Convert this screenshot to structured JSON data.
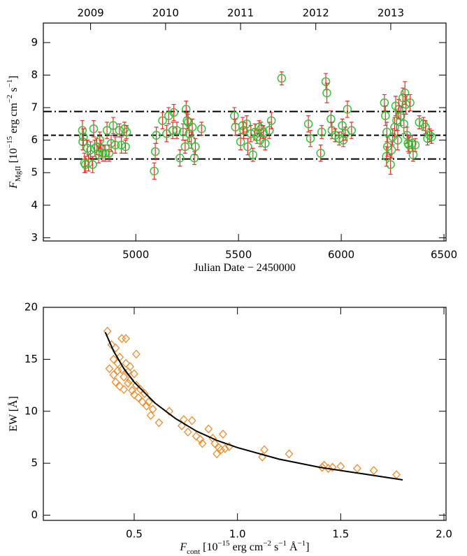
{
  "chart_data": [
    {
      "type": "scatter",
      "xlabel_parts": [
        {
          "text": "Julian Date − 2450000",
          "style": "normal"
        }
      ],
      "ylabel_parts": [
        {
          "text": "F",
          "style": "italic"
        },
        {
          "text": "MgII",
          "style": "sub"
        },
        {
          "text": " [10",
          "style": "normal"
        },
        {
          "text": "−15",
          "style": "sup"
        },
        {
          "text": " erg cm",
          "style": "normal"
        },
        {
          "text": "−2",
          "style": "sup"
        },
        {
          "text": " s",
          "style": "normal"
        },
        {
          "text": "−1",
          "style": "sup"
        },
        {
          "text": "]",
          "style": "normal"
        }
      ],
      "xlim": [
        4550,
        6510
      ],
      "ylim": [
        2.9,
        9.6
      ],
      "xticks": [
        5000,
        5500,
        6000,
        6500
      ],
      "yticks": [
        3,
        4,
        5,
        6,
        7,
        8,
        9
      ],
      "top_xticks": [
        {
          "value": 4780,
          "label": "2009"
        },
        {
          "value": 5145,
          "label": "2010"
        },
        {
          "value": 5510,
          "label": "2011"
        },
        {
          "value": 5876,
          "label": "2012"
        },
        {
          "value": 6241,
          "label": "2013"
        }
      ],
      "hlines": [
        {
          "value": 6.88,
          "style": "dashdot"
        },
        {
          "value": 6.15,
          "style": "dashed"
        },
        {
          "value": 5.42,
          "style": "dashdot"
        }
      ],
      "series": [
        {
          "marker": "circle",
          "color": "#35c435",
          "error_color": "#e8302a",
          "x": [
            4740,
            4742,
            4745,
            4750,
            4755,
            4765,
            4770,
            4780,
            4790,
            4795,
            4800,
            4810,
            4820,
            4825,
            4830,
            4840,
            4850,
            4860,
            4870,
            4880,
            4890,
            4900,
            4920,
            4930,
            4945,
            4950,
            4955,
            5090,
            5095,
            5100,
            5130,
            5150,
            5160,
            5180,
            5185,
            5200,
            5215,
            5230,
            5240,
            5245,
            5250,
            5255,
            5260,
            5270,
            5275,
            5285,
            5290,
            5320,
            5480,
            5485,
            5510,
            5520,
            5525,
            5540,
            5545,
            5560,
            5570,
            5580,
            5590,
            5600,
            5605,
            5610,
            5620,
            5630,
            5650,
            5660,
            5710,
            5840,
            5850,
            5900,
            5905,
            5925,
            5930,
            5950,
            5955,
            5970,
            5990,
            6005,
            6010,
            6020,
            6030,
            6050,
            6210,
            6215,
            6220,
            6222,
            6225,
            6240,
            6245,
            6250,
            6260,
            6265,
            6270,
            6275,
            6280,
            6290,
            6300,
            6305,
            6310,
            6315,
            6320,
            6325,
            6330,
            6335,
            6345,
            6350,
            6360,
            6380,
            6400,
            6410,
            6420,
            6430,
            6440
          ],
          "y": [
            6.3,
            5.95,
            6.1,
            5.3,
            5.25,
            5.75,
            5.3,
            5.7,
            5.25,
            6.35,
            5.75,
            5.8,
            5.55,
            6.0,
            5.75,
            5.6,
            5.6,
            6.3,
            5.6,
            5.9,
            6.45,
            5.85,
            6.3,
            5.85,
            6.35,
            5.8,
            6.25,
            5.05,
            5.65,
            6.15,
            6.6,
            6.2,
            6.75,
            6.3,
            6.85,
            6.3,
            5.45,
            6.25,
            5.8,
            6.95,
            6.6,
            6.55,
            6.2,
            6.0,
            6.4,
            5.45,
            5.8,
            6.35,
            6.75,
            6.4,
            5.95,
            6.45,
            6.3,
            6.5,
            5.8,
            6.2,
            5.55,
            6.25,
            6.1,
            6.4,
            6.0,
            6.35,
            6.25,
            5.9,
            6.3,
            6.6,
            7.9,
            6.5,
            6.05,
            5.6,
            6.25,
            7.8,
            7.45,
            6.65,
            6.3,
            6.15,
            6.05,
            6.45,
            6.0,
            6.2,
            6.95,
            6.3,
            7.15,
            6.75,
            5.5,
            6.25,
            5.8,
            5.25,
            5.7,
            6.1,
            6.4,
            7.05,
            6.6,
            6.0,
            6.95,
            6.75,
            7.3,
            6.5,
            7.45,
            7.1,
            6.15,
            5.9,
            5.85,
            7.15,
            5.9,
            5.55,
            5.85,
            6.55,
            6.5,
            6.4,
            6.05,
            6.15,
            6.1
          ],
          "yerr": [
            0.3,
            0.25,
            0.25,
            0.3,
            0.25,
            0.25,
            0.25,
            0.25,
            0.25,
            0.25,
            0.25,
            0.25,
            0.25,
            0.25,
            0.25,
            0.25,
            0.25,
            0.25,
            0.25,
            0.25,
            0.25,
            0.25,
            0.2,
            0.25,
            0.2,
            0.2,
            0.2,
            0.25,
            0.25,
            0.25,
            0.25,
            0.25,
            0.25,
            0.25,
            0.25,
            0.25,
            0.25,
            0.25,
            0.2,
            0.25,
            0.25,
            0.25,
            0.25,
            0.25,
            0.25,
            0.2,
            0.25,
            0.2,
            0.25,
            0.25,
            0.25,
            0.25,
            0.25,
            0.25,
            0.25,
            0.25,
            0.2,
            0.25,
            0.2,
            0.2,
            0.2,
            0.2,
            0.2,
            0.2,
            0.25,
            0.25,
            0.2,
            0.25,
            0.25,
            0.25,
            0.2,
            0.25,
            0.3,
            0.25,
            0.25,
            0.2,
            0.2,
            0.2,
            0.2,
            0.2,
            0.25,
            0.25,
            0.25,
            0.3,
            0.3,
            0.3,
            0.3,
            0.3,
            0.25,
            0.25,
            0.3,
            0.3,
            0.3,
            0.3,
            0.3,
            0.3,
            0.3,
            0.3,
            0.35,
            0.3,
            0.25,
            0.25,
            0.25,
            0.25,
            0.25,
            0.2,
            0.2,
            0.2,
            0.2,
            0.2,
            0.2,
            0.2,
            0.2
          ]
        }
      ]
    },
    {
      "type": "scatter",
      "xlabel_parts": [
        {
          "text": "F",
          "style": "italic"
        },
        {
          "text": "cont",
          "style": "sub"
        },
        {
          "text": " [10",
          "style": "normal"
        },
        {
          "text": "−15",
          "style": "sup"
        },
        {
          "text": " erg cm",
          "style": "normal"
        },
        {
          "text": "−2",
          "style": "sup"
        },
        {
          "text": " s",
          "style": "normal"
        },
        {
          "text": "−1",
          "style": "sup"
        },
        {
          "text": " Å",
          "style": "normal"
        },
        {
          "text": "−1",
          "style": "sup"
        },
        {
          "text": "]",
          "style": "normal"
        }
      ],
      "ylabel_parts": [
        {
          "text": "EW [Å]",
          "style": "normal"
        }
      ],
      "xlim": [
        0.06,
        2.01
      ],
      "ylim": [
        -0.5,
        20
      ],
      "xticks": [
        0.5,
        {
          "value": 1,
          "label": "1.0"
        },
        1.5,
        {
          "value": 2,
          "label": "2.0"
        }
      ],
      "yticks": [
        0,
        5,
        10,
        15,
        20
      ],
      "series": [
        {
          "marker": "diamond",
          "color": "#f28c28",
          "x": [
            0.37,
            0.38,
            0.39,
            0.4,
            0.4,
            0.41,
            0.41,
            0.42,
            0.42,
            0.43,
            0.43,
            0.44,
            0.44,
            0.45,
            0.45,
            0.46,
            0.46,
            0.47,
            0.47,
            0.48,
            0.48,
            0.49,
            0.5,
            0.5,
            0.51,
            0.51,
            0.52,
            0.53,
            0.54,
            0.55,
            0.56,
            0.57,
            0.58,
            0.59,
            0.62,
            0.67,
            0.73,
            0.74,
            0.76,
            0.78,
            0.8,
            0.82,
            0.83,
            0.86,
            0.88,
            0.89,
            0.9,
            0.91,
            0.92,
            0.93,
            0.94,
            0.96,
            1.12,
            1.13,
            1.25,
            1.41,
            1.42,
            1.44,
            1.46,
            1.5,
            1.58,
            1.66,
            1.77
          ],
          "y": [
            17.7,
            14.1,
            16.4,
            15.0,
            13.5,
            16.1,
            12.8,
            14.6,
            13.9,
            15.2,
            12.4,
            17.0,
            14.0,
            13.3,
            12.1,
            17.0,
            14.6,
            13.8,
            12.7,
            13.0,
            14.3,
            12.0,
            13.6,
            11.6,
            15.5,
            12.5,
            11.3,
            12.1,
            10.9,
            11.7,
            10.5,
            10.9,
            9.6,
            10.2,
            8.9,
            10.0,
            8.6,
            9.2,
            8.0,
            9.1,
            7.6,
            7.3,
            6.9,
            8.3,
            7.4,
            6.9,
            5.9,
            6.5,
            6.3,
            7.8,
            6.4,
            6.6,
            5.6,
            6.3,
            5.9,
            4.6,
            4.8,
            4.5,
            4.6,
            4.7,
            4.5,
            4.3,
            3.9
          ]
        },
        {
          "mode": "line",
          "color": "#000000",
          "x": [
            0.36,
            0.4,
            0.45,
            0.5,
            0.6,
            0.7,
            0.8,
            0.9,
            1.0,
            1.2,
            1.4,
            1.6,
            1.8
          ],
          "y": [
            17.6,
            15.8,
            14.1,
            12.8,
            10.8,
            9.3,
            8.1,
            7.2,
            6.5,
            5.4,
            4.6,
            4.0,
            3.4
          ]
        }
      ]
    }
  ]
}
